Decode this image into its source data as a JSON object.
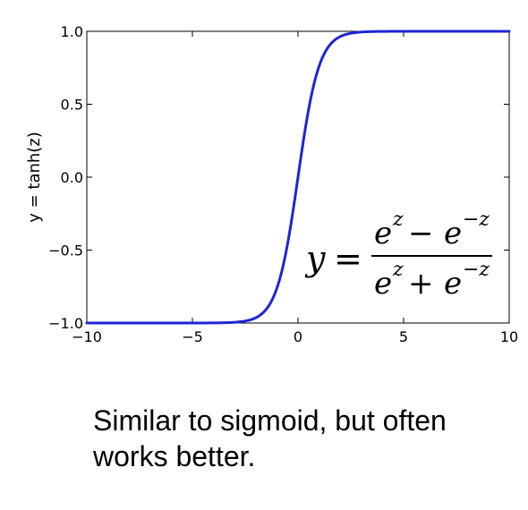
{
  "chart_data": {
    "type": "line",
    "title": "",
    "xlabel": "",
    "ylabel": "y = tanh(z)",
    "xlim": [
      -10,
      10
    ],
    "ylim": [
      -1.0,
      1.0
    ],
    "grid": false,
    "x_ticks": [
      -10,
      -5,
      0,
      5,
      10
    ],
    "x_tick_labels": [
      "−10",
      "−5",
      "0",
      "5",
      "10"
    ],
    "y_ticks": [
      -1.0,
      -0.5,
      0.0,
      0.5,
      1.0
    ],
    "y_tick_labels": [
      "−1.0",
      "−0.5",
      "0.0",
      "0.5",
      "1.0"
    ],
    "series": [
      {
        "function": "tanh",
        "color": "#1f25d6",
        "x": [
          -10,
          -6,
          -4,
          -3,
          -2.5,
          -2,
          -1.5,
          -1.25,
          -1,
          -0.75,
          -0.5,
          -0.25,
          0,
          0.25,
          0.5,
          0.75,
          1,
          1.25,
          1.5,
          2,
          2.5,
          3,
          4,
          6,
          10
        ],
        "y": [
          -1.0,
          -1.0,
          -0.999,
          -0.995,
          -0.987,
          -0.964,
          -0.905,
          -0.848,
          -0.762,
          -0.635,
          -0.462,
          -0.245,
          0.0,
          0.245,
          0.462,
          0.635,
          0.762,
          0.848,
          0.905,
          0.964,
          0.987,
          0.995,
          0.999,
          1.0,
          1.0
        ]
      }
    ],
    "annotation": {
      "lhs": "y",
      "equals": "=",
      "numerator": {
        "term1_base": "e",
        "term1_exp": "z",
        "op": "−",
        "term2_base": "e",
        "term2_exp": "−z"
      },
      "denominator": {
        "term1_base": "e",
        "term1_exp": "z",
        "op": "+",
        "term2_base": "e",
        "term2_exp": "−z"
      }
    }
  },
  "caption": {
    "line1": "Similar to sigmoid, but often",
    "line2": "works better."
  }
}
